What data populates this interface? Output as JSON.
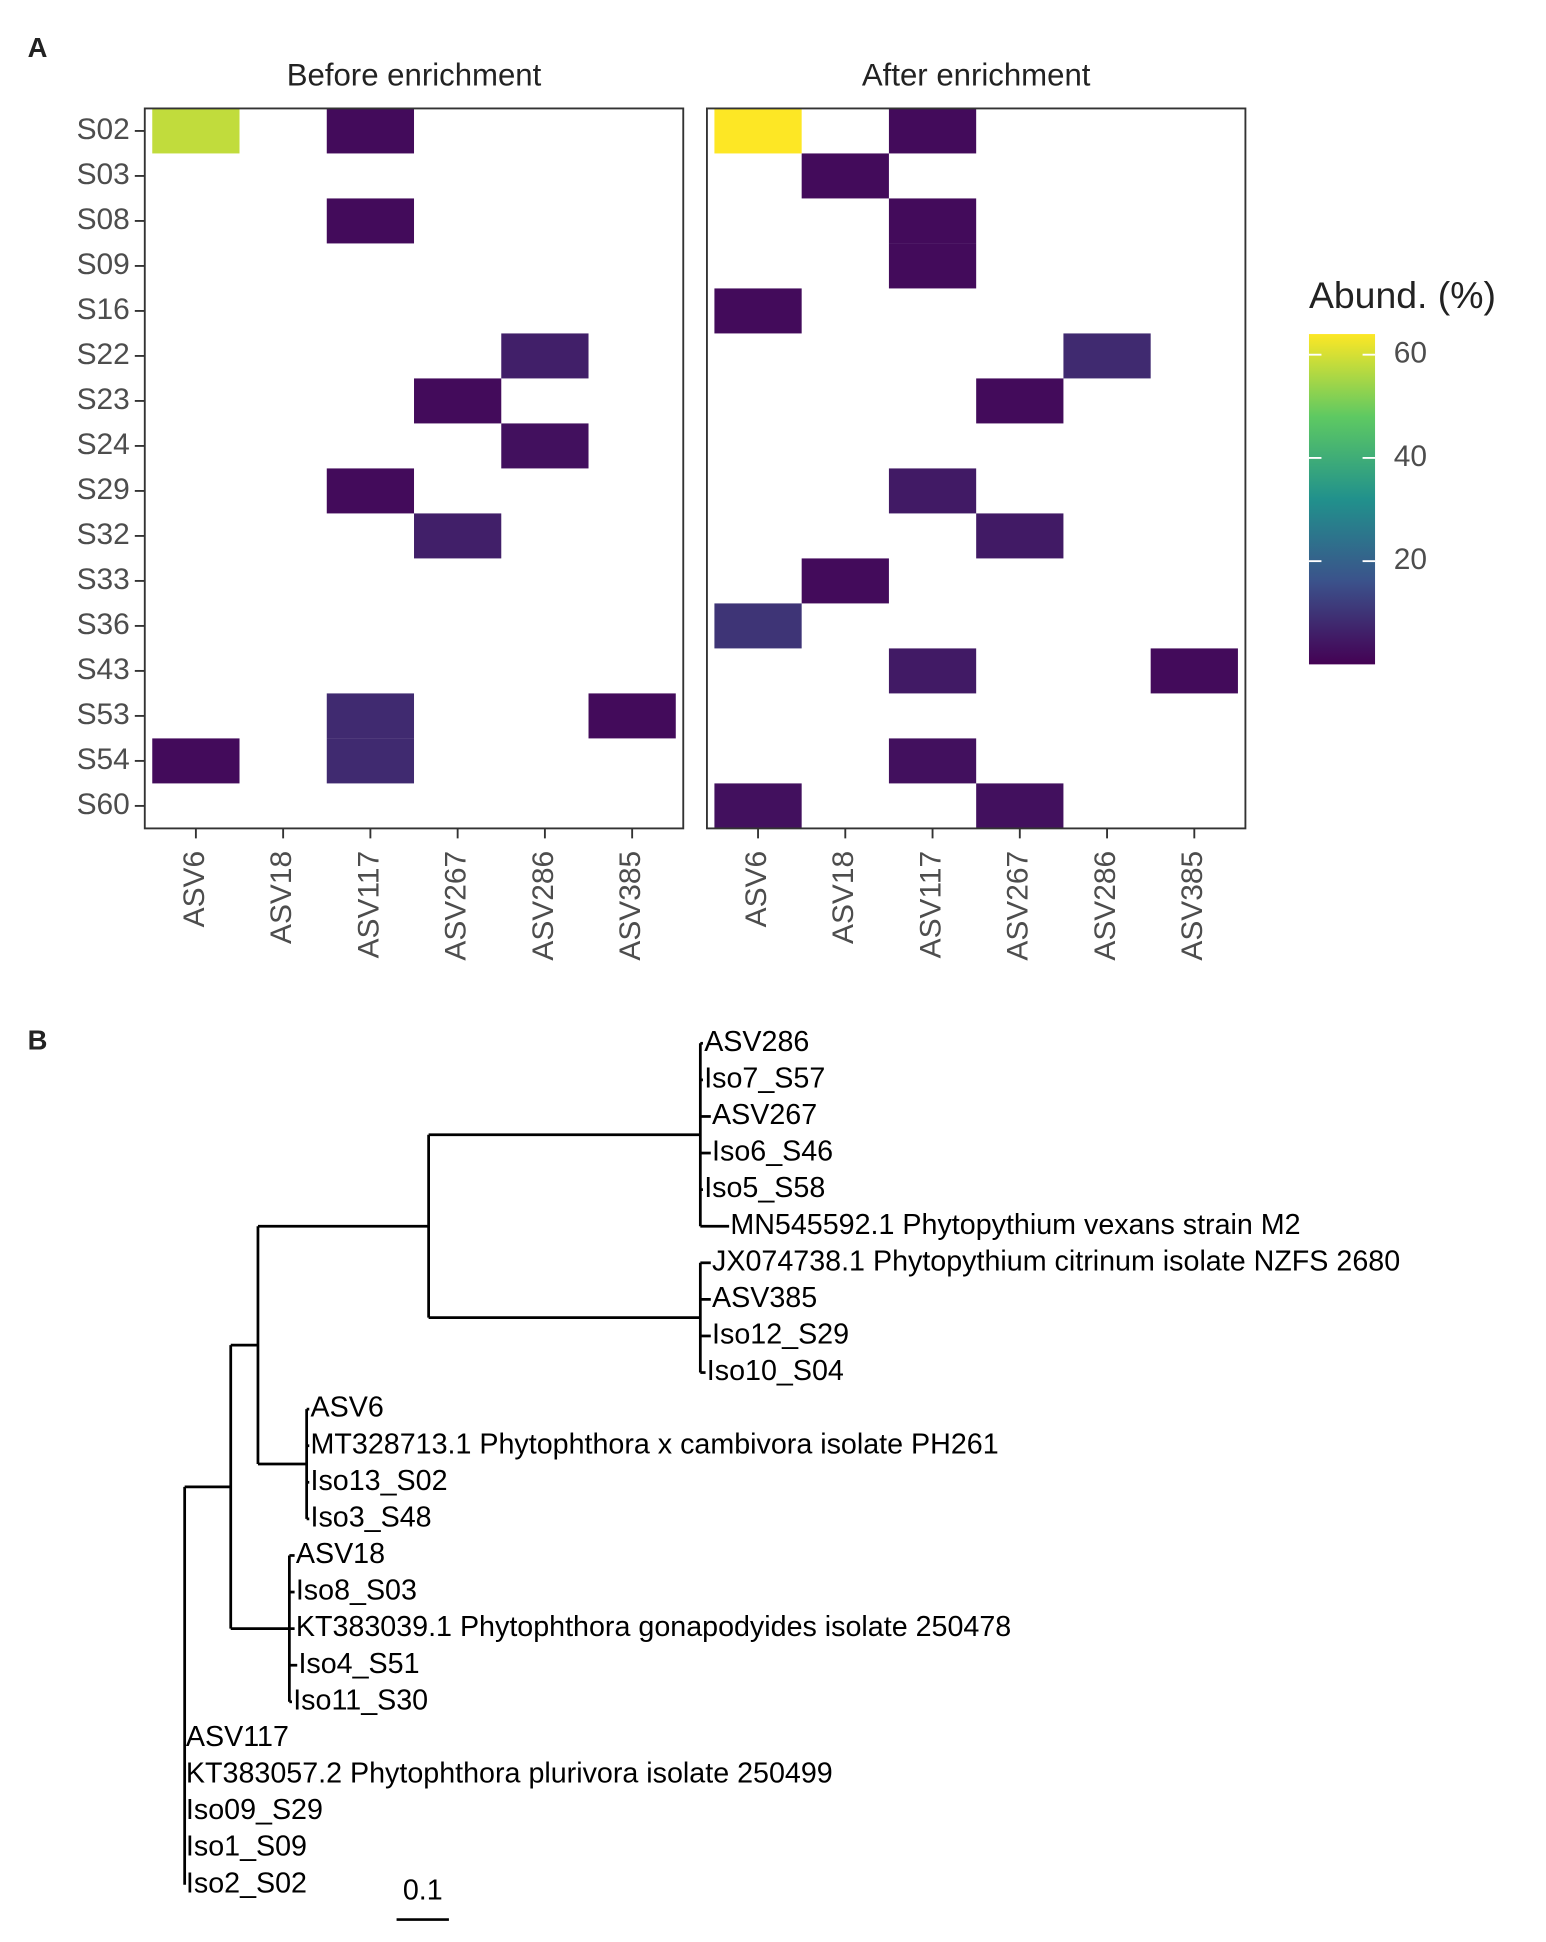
{
  "chart_data": [
    {
      "type": "heatmap",
      "label": "A",
      "legend_title": "Abund. (%)",
      "rows": [
        "S02",
        "S03",
        "S08",
        "S09",
        "S16",
        "S22",
        "S23",
        "S24",
        "S29",
        "S32",
        "S33",
        "S36",
        "S43",
        "S53",
        "S54",
        "S60"
      ],
      "columns": [
        "ASV6",
        "ASV18",
        "ASV117",
        "ASV267",
        "ASV286",
        "ASV385"
      ],
      "colorlim": [
        0,
        64
      ],
      "colorticks": [
        20,
        40,
        60
      ],
      "colorscale": [
        "#440154",
        "#3b528b",
        "#21918c",
        "#5ec962",
        "#fde725"
      ],
      "panels": [
        {
          "title": "Before enrichment",
          "values": [
            [
              58,
              null,
              2,
              null,
              null,
              null
            ],
            [
              null,
              null,
              null,
              null,
              null,
              null
            ],
            [
              null,
              null,
              2,
              null,
              null,
              null
            ],
            [
              null,
              null,
              null,
              null,
              null,
              null
            ],
            [
              null,
              null,
              null,
              null,
              null,
              null
            ],
            [
              null,
              null,
              null,
              null,
              6,
              null
            ],
            [
              null,
              null,
              null,
              2,
              null,
              null
            ],
            [
              null,
              null,
              null,
              null,
              3,
              null
            ],
            [
              null,
              null,
              2,
              null,
              null,
              null
            ],
            [
              null,
              null,
              null,
              6,
              null,
              null
            ],
            [
              null,
              null,
              null,
              null,
              null,
              null
            ],
            [
              null,
              null,
              null,
              null,
              null,
              null
            ],
            [
              null,
              null,
              null,
              null,
              null,
              null
            ],
            [
              null,
              null,
              8,
              null,
              null,
              2
            ],
            [
              2,
              null,
              8,
              null,
              null,
              null
            ],
            [
              null,
              null,
              null,
              null,
              null,
              null
            ]
          ]
        },
        {
          "title": "After enrichment",
          "values": [
            [
              64,
              null,
              2,
              null,
              null,
              null
            ],
            [
              null,
              2,
              null,
              null,
              null,
              null
            ],
            [
              null,
              null,
              2,
              null,
              null,
              null
            ],
            [
              null,
              null,
              2,
              null,
              null,
              null
            ],
            [
              2,
              null,
              null,
              null,
              null,
              null
            ],
            [
              null,
              null,
              null,
              null,
              8,
              null
            ],
            [
              null,
              null,
              null,
              2,
              null,
              null
            ],
            [
              null,
              null,
              null,
              null,
              null,
              null
            ],
            [
              null,
              null,
              5,
              null,
              null,
              null
            ],
            [
              null,
              null,
              null,
              5,
              null,
              null
            ],
            [
              null,
              2,
              null,
              null,
              null,
              null
            ],
            [
              10,
              null,
              null,
              null,
              null,
              null
            ],
            [
              null,
              null,
              5,
              null,
              null,
              2
            ],
            [
              null,
              null,
              null,
              null,
              null,
              null
            ],
            [
              null,
              null,
              3,
              null,
              null,
              null
            ],
            [
              3,
              null,
              null,
              3,
              null,
              null
            ]
          ]
        }
      ]
    },
    {
      "type": "tree",
      "label": "B",
      "scale_bar": 0.1,
      "root": {
        "children": [
          {
            "length": 0.088,
            "children": [
              {
                "length": 0.052,
                "children": [
                  {
                    "length": 0.326,
                    "children": [
                      {
                        "length": 0.519,
                        "children": [
                          {
                            "name": "ASV286",
                            "length": 0.005
                          },
                          {
                            "name": "Iso7_S57",
                            "length": 0.005
                          },
                          {
                            "name": "ASV267",
                            "length": 0.02
                          },
                          {
                            "name": "Iso6_S46",
                            "length": 0.02
                          },
                          {
                            "name": "Iso5_S58",
                            "length": 0.005
                          },
                          {
                            "name": "MN545592.1 Phytopythium vexans strain M2",
                            "length": 0.055
                          }
                        ]
                      },
                      {
                        "length": 0.519,
                        "children": [
                          {
                            "name": "JX074738.1 Phytopythium citrinum isolate NZFS 2680",
                            "length": 0.02
                          },
                          {
                            "name": "ASV385",
                            "length": 0.02
                          },
                          {
                            "name": "Iso12_S29",
                            "length": 0.02
                          },
                          {
                            "name": "Iso10_S04",
                            "length": 0.01
                          }
                        ]
                      }
                    ]
                  },
                  {
                    "length": 0.093,
                    "children": [
                      {
                        "name": "ASV6",
                        "length": 0.005
                      },
                      {
                        "name": "MT328713.1 Phytophthora x cambivora isolate PH261",
                        "length": 0.005
                      },
                      {
                        "name": "Iso13_S02",
                        "length": 0.005
                      },
                      {
                        "name": "Iso3_S48",
                        "length": 0.005
                      }
                    ]
                  }
                ]
              },
              {
                "length": 0.112,
                "children": [
                  {
                    "name": "ASV18",
                    "length": 0.01
                  },
                  {
                    "name": "Iso8_S03",
                    "length": 0.01
                  },
                  {
                    "name": "KT383039.1 Phytophthora gonapodyides isolate 250478",
                    "length": 0.01
                  },
                  {
                    "name": "Iso4_S51",
                    "length": 0.015
                  },
                  {
                    "name": "Iso11_S30",
                    "length": 0.005
                  }
                ]
              }
            ]
          },
          {
            "name": "ASV117",
            "length": 0
          },
          {
            "name": "KT383057.2 Phytophthora plurivora isolate 250499",
            "length": 0
          },
          {
            "name": "Iso09_S29",
            "length": 0
          },
          {
            "name": "Iso1_S09",
            "length": 0
          },
          {
            "name": "Iso2_S02",
            "length": 0
          }
        ]
      }
    }
  ]
}
